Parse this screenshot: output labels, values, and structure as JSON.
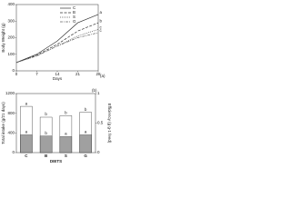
{
  "chart_data": [
    {
      "type": "line",
      "panel": "(a)",
      "xlabel": "Days",
      "ylabel": "Body Weight (g)",
      "x": [
        0,
        7,
        14,
        21,
        28
      ],
      "xlim": [
        0,
        28
      ],
      "xticks": [
        0,
        7,
        14,
        21,
        28
      ],
      "ylim": [
        0,
        400
      ],
      "yticks": [
        0,
        100,
        200,
        300,
        400
      ],
      "legend": "upper left",
      "series": [
        {
          "name": "C",
          "color": "#333333",
          "dash": "none",
          "end_label": "a",
          "values": [
            50,
            100,
            180,
            290,
            340
          ]
        },
        {
          "name": "B",
          "color": "#333333",
          "dash": "3 1.5",
          "end_label": "b",
          "values": [
            50,
            95,
            160,
            240,
            290
          ]
        },
        {
          "name": "S",
          "color": "#555555",
          "dash": "1 1",
          "end_label": "c",
          "values": [
            50,
            90,
            150,
            210,
            250
          ]
        },
        {
          "name": "G",
          "color": "#666666",
          "dash": "3 1 1 1",
          "end_label": "c",
          "values": [
            50,
            90,
            150,
            200,
            230
          ]
        }
      ]
    },
    {
      "type": "bar",
      "panel": "(b)",
      "xlabel": "DIETS",
      "ylabel": "Total intake (g/21 days)",
      "y2label": "Efficiency (g g-1 feed)",
      "categories": [
        "C",
        "B",
        "S",
        "G"
      ],
      "ylim": [
        0,
        1200
      ],
      "yticks": [
        0,
        400,
        800,
        1200
      ],
      "y2lim": [
        0,
        1
      ],
      "y2ticks": [
        0,
        0.5,
        1
      ],
      "series": [
        {
          "color": "#ffffff",
          "values": [
            940,
            720,
            750,
            820
          ],
          "letters": [
            "a",
            "b",
            "b",
            "b"
          ]
        },
        {
          "color": "#a0a0a0",
          "axis": "y2",
          "values": [
            0.3,
            0.28,
            0.27,
            0.3
          ],
          "letters": [
            "a",
            "b",
            "a",
            "a"
          ]
        }
      ]
    }
  ]
}
